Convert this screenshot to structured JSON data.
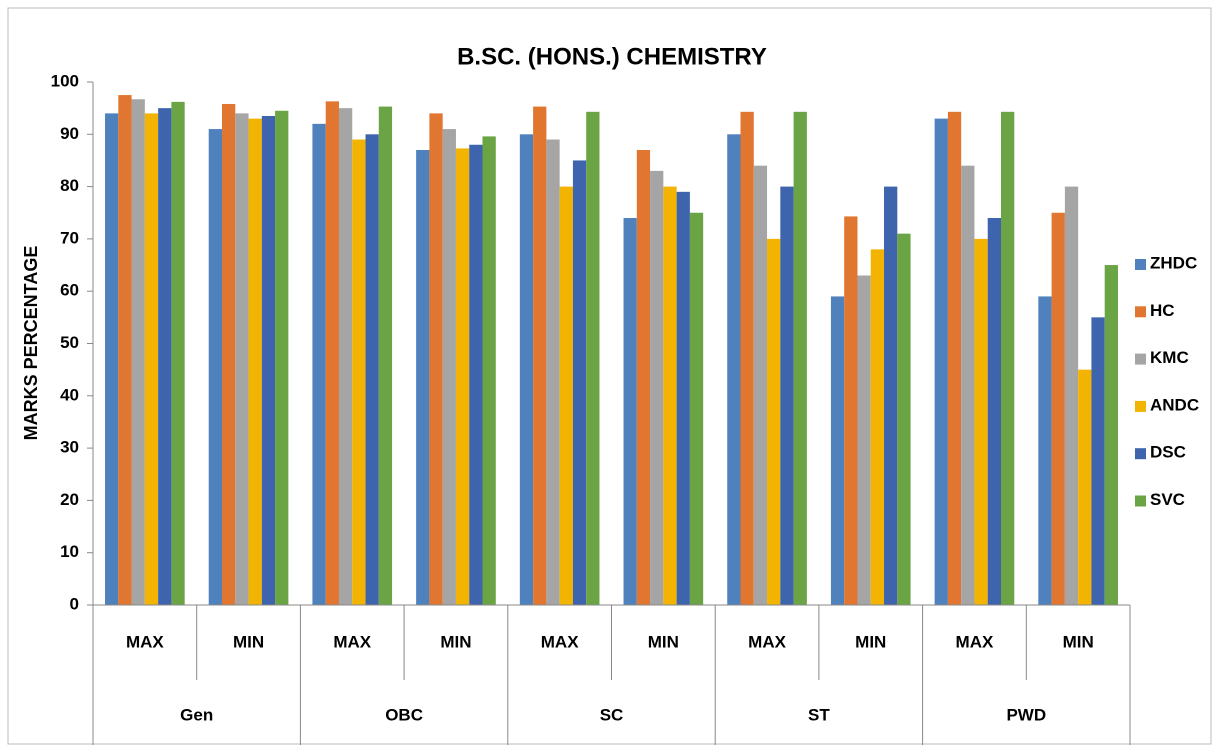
{
  "chart_data": {
    "type": "bar",
    "title": "B.SC. (HONS.) CHEMISTRY",
    "y_label": "MARKS PERCENTAGE",
    "categories": [
      "MAX",
      "MIN",
      "MAX",
      "MIN",
      "MAX",
      "MIN",
      "MAX",
      "MIN",
      "MAX",
      "MIN"
    ],
    "groups": [
      "Gen",
      "OBC",
      "SC",
      "ST",
      "PWD"
    ],
    "series": [
      {
        "name": "ZHDC",
        "color": "#4f81bd",
        "values": [
          94,
          91,
          92,
          87,
          90,
          74,
          90,
          59,
          93,
          59
        ]
      },
      {
        "name": "HC",
        "color": "#e0762f",
        "values": [
          97.5,
          95.8,
          96.3,
          94,
          95.3,
          87,
          94.3,
          74.3,
          94.3,
          75
        ]
      },
      {
        "name": "KMC",
        "color": "#a5a5a5",
        "values": [
          96.7,
          94,
          95,
          91,
          89,
          83,
          84,
          63,
          84,
          80
        ]
      },
      {
        "name": "ANDC",
        "color": "#f2b400",
        "values": [
          94,
          93,
          89,
          87.3,
          80,
          80,
          70,
          68,
          70,
          45
        ]
      },
      {
        "name": "DSC",
        "color": "#3d64ad",
        "values": [
          95,
          93.5,
          90,
          88,
          85,
          79,
          80,
          80,
          74,
          55
        ]
      },
      {
        "name": "SVC",
        "color": "#6aa444",
        "values": [
          96.2,
          94.5,
          95.3,
          89.6,
          94.3,
          75,
          94.3,
          71,
          94.3,
          65
        ]
      }
    ],
    "ylim": [
      0,
      100
    ],
    "yticks": [
      0,
      10,
      20,
      30,
      40,
      50,
      60,
      70,
      80,
      90,
      100
    ],
    "grid": false,
    "legend": "right"
  }
}
